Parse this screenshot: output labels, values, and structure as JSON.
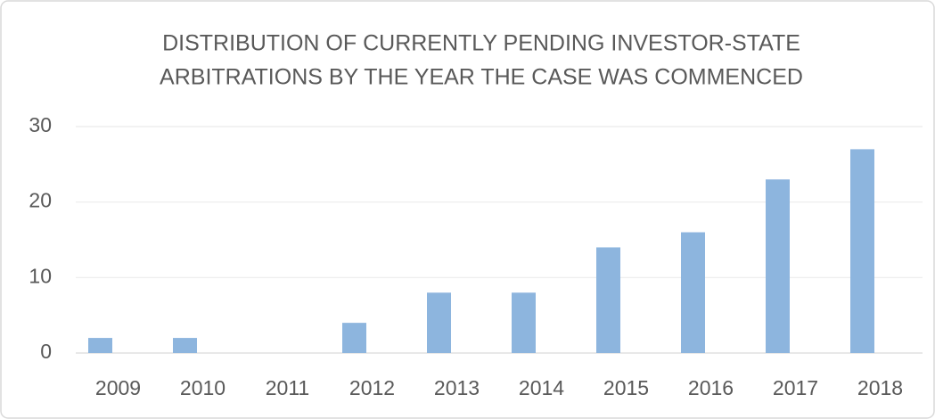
{
  "chart_data": {
    "type": "bar",
    "title": [
      "DISTRIBUTION OF CURRENTLY PENDING INVESTOR-STATE",
      "ARBITRATIONS BY THE YEAR THE CASE WAS COMMENCED"
    ],
    "categories": [
      "2009",
      "2010",
      "2011",
      "2012",
      "2013",
      "2014",
      "2015",
      "2016",
      "2017",
      "2018"
    ],
    "values": [
      2,
      2,
      0,
      4,
      8,
      8,
      14,
      16,
      23,
      27
    ],
    "color": "#8db5de",
    "ylim": [
      0,
      30
    ],
    "yticks": [
      0,
      10,
      20,
      30
    ],
    "grid": true
  }
}
